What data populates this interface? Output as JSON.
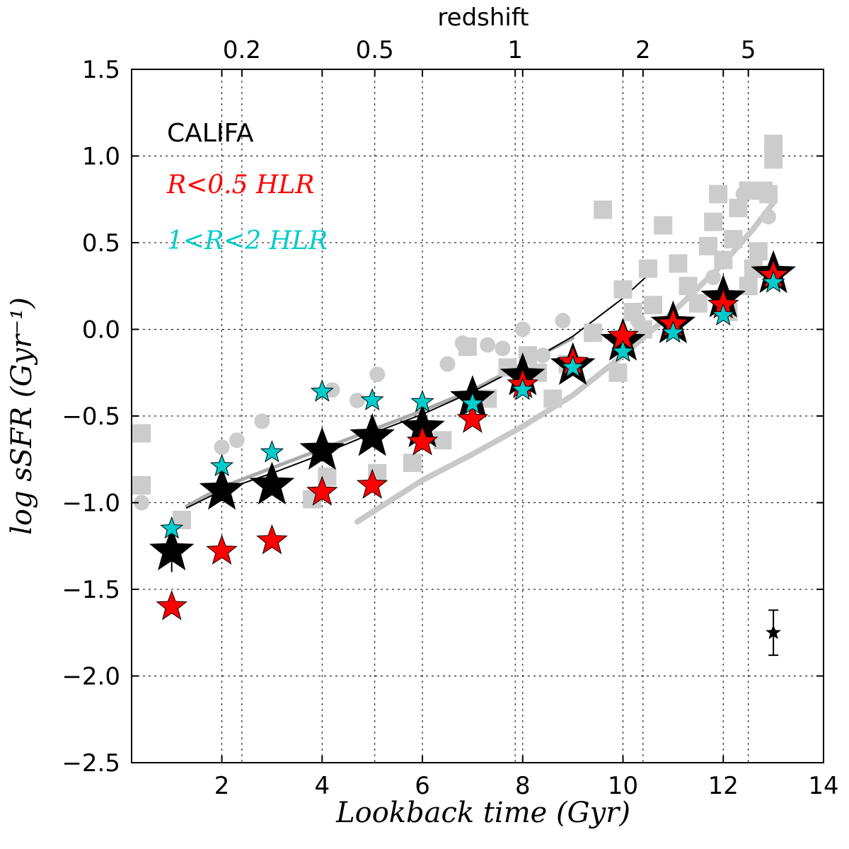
{
  "chart_data": {
    "type": "scatter",
    "xlabel": "Lookback time (Gyr)",
    "ylabel": "log sSFR (Gyr⁻¹)",
    "top_axis_label": "redshift",
    "xlim": [
      0.2,
      14
    ],
    "ylim": [
      -2.5,
      1.5
    ],
    "x_ticks": [
      2,
      4,
      6,
      8,
      10,
      12,
      14
    ],
    "y_ticks": [
      -2.5,
      -2.0,
      -1.5,
      -1.0,
      -0.5,
      0.0,
      0.5,
      1.0,
      1.5
    ],
    "y_tick_labels": [
      "−2.5",
      "−2.0",
      "−1.5",
      "−1.0",
      "−0.5",
      "0.0",
      "0.5",
      "1.0",
      "1.5"
    ],
    "top_ticks": [
      {
        "label": "0.2",
        "lookback": 2.4
      },
      {
        "label": "0.5",
        "lookback": 5.05
      },
      {
        "label": "1",
        "lookback": 7.85
      },
      {
        "label": "2",
        "lookback": 10.4
      },
      {
        "label": "5",
        "lookback": 12.5
      }
    ],
    "grid": true,
    "legend": [
      {
        "text": "CALIFA",
        "color": "#000000"
      },
      {
        "text": "R<0.5 HLR",
        "color": "#ff0000"
      },
      {
        "text": "1<R<2 HLR",
        "color": "#00cccc"
      }
    ],
    "series": [
      {
        "name": "CALIFA",
        "color": "#000000",
        "marker": "star-large",
        "x": [
          1,
          2,
          3,
          4,
          5,
          6,
          7,
          8,
          9,
          10,
          11,
          12,
          13
        ],
        "y": [
          -1.28,
          -0.93,
          -0.9,
          -0.7,
          -0.62,
          -0.57,
          -0.4,
          -0.27,
          -0.21,
          -0.07,
          0.03,
          0.18,
          0.32
        ],
        "yerr": [
          0.12,
          0.04,
          0.03,
          0.03,
          0.03,
          0.03,
          0.03,
          0.03,
          0.03,
          0.03,
          0.03,
          0.03,
          0.03
        ]
      },
      {
        "name": "R<0.5 HLR",
        "color": "#ff0000",
        "marker": "star",
        "x": [
          1,
          2,
          3,
          4,
          5,
          6,
          7,
          8,
          9,
          10,
          11,
          12,
          13
        ],
        "y": [
          -1.6,
          -1.28,
          -1.22,
          -0.94,
          -0.9,
          -0.65,
          -0.52,
          -0.32,
          -0.19,
          -0.04,
          0.03,
          0.14,
          0.31
        ]
      },
      {
        "name": "1<R<2 HLR",
        "color": "#00cccc",
        "marker": "star-small",
        "x": [
          1,
          2,
          3,
          4,
          5,
          6,
          7,
          8,
          9,
          10,
          11,
          12,
          13
        ],
        "y": [
          -1.15,
          -0.79,
          -0.71,
          -0.36,
          -0.41,
          -0.42,
          -0.43,
          -0.35,
          -0.22,
          -0.13,
          -0.02,
          0.08,
          0.27
        ]
      },
      {
        "name": "literature-squares",
        "color": "#cccccc",
        "marker": "square",
        "x": [
          0.4,
          0.4,
          1.2,
          3.8,
          4.1,
          5.1,
          5.8,
          6.4,
          6.9,
          7.3,
          7.7,
          8.1,
          8.3,
          8.6,
          8.9,
          9.4,
          9.6,
          9.9,
          10.0,
          10.2,
          10.4,
          10.5,
          10.6,
          10.8,
          11.1,
          11.3,
          11.5,
          11.7,
          11.8,
          11.9,
          12.0,
          12.1,
          12.3,
          12.5,
          12.6,
          12.7,
          12.8,
          12.9,
          13.0,
          13.0,
          12.5,
          12.2
        ],
        "y": [
          -0.6,
          -0.9,
          -1.1,
          -0.98,
          -0.85,
          -0.83,
          -0.77,
          -0.64,
          -0.1,
          -0.4,
          -0.22,
          -0.15,
          -0.25,
          -0.4,
          -0.2,
          -0.02,
          0.69,
          -0.25,
          0.23,
          0.1,
          0.0,
          0.35,
          0.14,
          0.6,
          0.38,
          0.25,
          0.15,
          0.48,
          0.62,
          0.78,
          0.4,
          0.1,
          0.7,
          0.8,
          0.35,
          0.45,
          0.8,
          0.78,
          0.98,
          1.07,
          0.25,
          0.52
        ]
      },
      {
        "name": "literature-circles",
        "color": "#cccccc",
        "marker": "circle",
        "x": [
          0.4,
          2.0,
          2.3,
          2.8,
          4.2,
          4.7,
          5.1,
          6.5,
          6.8,
          7.3,
          7.6,
          8.0,
          8.4,
          8.8,
          10.3,
          11.8,
          12.2,
          12.4,
          12.9
        ],
        "y": [
          -1.0,
          -0.68,
          -0.64,
          -0.53,
          -0.35,
          -0.41,
          -0.26,
          -0.2,
          -0.08,
          -0.09,
          -0.11,
          0.0,
          -0.15,
          0.05,
          0.05,
          0.3,
          0.52,
          0.78,
          0.65
        ]
      }
    ],
    "curves": [
      {
        "name": "thin-black",
        "color": "#000000",
        "x": [
          1.3,
          2.0,
          3.0,
          4.0,
          5.0,
          6.0,
          7.0,
          8.0,
          9.0,
          10.0,
          10.6
        ],
        "y": [
          -1.03,
          -0.93,
          -0.83,
          -0.72,
          -0.6,
          -0.49,
          -0.36,
          -0.21,
          -0.04,
          0.18,
          0.34
        ]
      },
      {
        "name": "thin-grey",
        "color": "#aaaaaa",
        "x": [
          1.3,
          2.0,
          3.0,
          4.0,
          5.0,
          6.0,
          7.0,
          8.0,
          9.0
        ],
        "y": [
          -1.02,
          -0.91,
          -0.8,
          -0.69,
          -0.58,
          -0.47,
          -0.35,
          -0.2,
          -0.05
        ]
      },
      {
        "name": "thick-grey",
        "color": "#c8c8c8",
        "x": [
          4.7,
          6.0,
          7.0,
          8.0,
          9.0,
          10.0,
          11.0,
          12.0,
          12.6,
          13.0
        ],
        "y": [
          -1.11,
          -0.87,
          -0.72,
          -0.56,
          -0.38,
          -0.15,
          0.1,
          0.38,
          0.58,
          0.73
        ]
      }
    ],
    "error_marker": {
      "x": 13,
      "y": -1.75,
      "yerr": 0.13
    }
  }
}
